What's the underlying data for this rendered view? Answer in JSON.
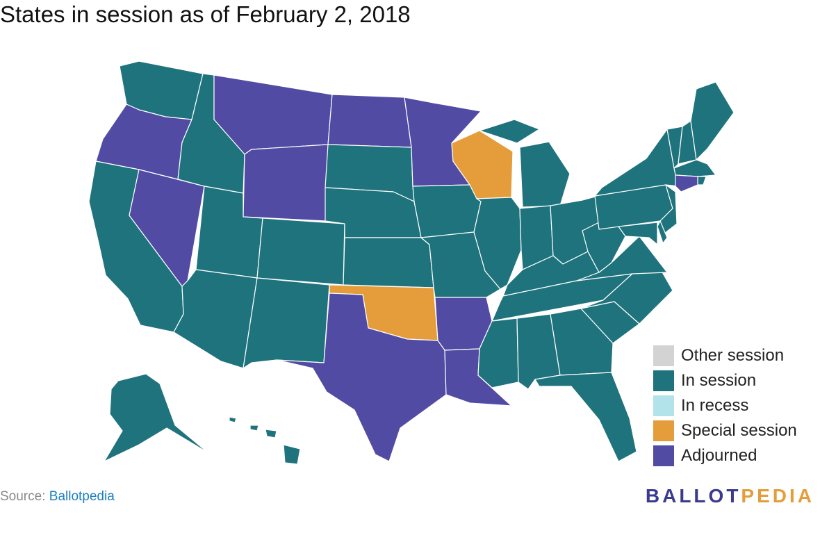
{
  "title": "States in session as of February 2, 2018",
  "colors": {
    "other": "#d3d3d3",
    "in_session": "#1f737d",
    "in_recess": "#b3e3ea",
    "special": "#e49d3a",
    "adjourned": "#524ba3"
  },
  "legend": [
    {
      "label": "Other session",
      "color": "#d3d3d3"
    },
    {
      "label": "In session",
      "color": "#1f737d"
    },
    {
      "label": "In recess",
      "color": "#b3e3ea"
    },
    {
      "label": "Special session",
      "color": "#e49d3a"
    },
    {
      "label": "Adjourned",
      "color": "#524ba3"
    }
  ],
  "states": [
    {
      "name": "Washington",
      "status": "in_session"
    },
    {
      "name": "Oregon",
      "status": "adjourned"
    },
    {
      "name": "California",
      "status": "in_session"
    },
    {
      "name": "Nevada",
      "status": "adjourned"
    },
    {
      "name": "Idaho",
      "status": "in_session"
    },
    {
      "name": "Montana",
      "status": "adjourned"
    },
    {
      "name": "Wyoming",
      "status": "adjourned"
    },
    {
      "name": "Utah",
      "status": "in_session"
    },
    {
      "name": "Arizona",
      "status": "in_session"
    },
    {
      "name": "Colorado",
      "status": "in_session"
    },
    {
      "name": "New Mexico",
      "status": "in_session"
    },
    {
      "name": "North Dakota",
      "status": "adjourned"
    },
    {
      "name": "South Dakota",
      "status": "in_session"
    },
    {
      "name": "Nebraska",
      "status": "in_session"
    },
    {
      "name": "Kansas",
      "status": "in_session"
    },
    {
      "name": "Oklahoma",
      "status": "special"
    },
    {
      "name": "Texas",
      "status": "adjourned"
    },
    {
      "name": "Minnesota",
      "status": "adjourned"
    },
    {
      "name": "Iowa",
      "status": "in_session"
    },
    {
      "name": "Missouri",
      "status": "in_session"
    },
    {
      "name": "Arkansas",
      "status": "adjourned"
    },
    {
      "name": "Louisiana",
      "status": "adjourned"
    },
    {
      "name": "Wisconsin",
      "status": "special"
    },
    {
      "name": "Illinois",
      "status": "in_session"
    },
    {
      "name": "Michigan",
      "status": "in_session"
    },
    {
      "name": "Indiana",
      "status": "in_session"
    },
    {
      "name": "Ohio",
      "status": "in_session"
    },
    {
      "name": "Kentucky",
      "status": "in_session"
    },
    {
      "name": "Tennessee",
      "status": "in_session"
    },
    {
      "name": "Mississippi",
      "status": "in_session"
    },
    {
      "name": "Alabama",
      "status": "in_session"
    },
    {
      "name": "Georgia",
      "status": "in_session"
    },
    {
      "name": "Florida",
      "status": "in_session"
    },
    {
      "name": "South Carolina",
      "status": "in_session"
    },
    {
      "name": "North Carolina",
      "status": "in_session"
    },
    {
      "name": "Virginia",
      "status": "in_session"
    },
    {
      "name": "West Virginia",
      "status": "in_session"
    },
    {
      "name": "Pennsylvania",
      "status": "in_session"
    },
    {
      "name": "New York",
      "status": "in_session"
    },
    {
      "name": "Vermont",
      "status": "in_session"
    },
    {
      "name": "New Hampshire",
      "status": "in_session"
    },
    {
      "name": "Maine",
      "status": "in_session"
    },
    {
      "name": "Massachusetts",
      "status": "in_session"
    },
    {
      "name": "Rhode Island",
      "status": "in_session"
    },
    {
      "name": "Connecticut",
      "status": "adjourned"
    },
    {
      "name": "New Jersey",
      "status": "in_session"
    },
    {
      "name": "Delaware",
      "status": "in_session"
    },
    {
      "name": "Maryland",
      "status": "in_session"
    },
    {
      "name": "Alaska",
      "status": "in_session"
    },
    {
      "name": "Hawaii",
      "status": "in_session"
    }
  ],
  "source": {
    "prefix": "Source: ",
    "link": "Ballotpedia"
  },
  "brand": {
    "part1": "BALLOT",
    "part2": "PEDIA",
    "color1": "#3a3a8f",
    "color2": "#e49d3a"
  }
}
